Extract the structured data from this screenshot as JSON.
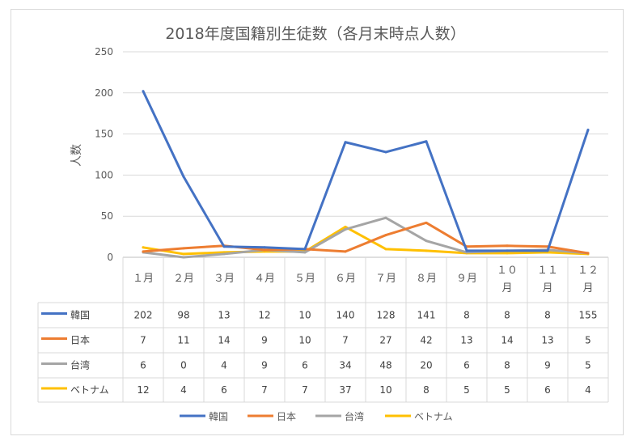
{
  "chart_data": {
    "type": "line",
    "title": "2018年度国籍別生徒数（各月末時点人数）",
    "ylabel": "人数",
    "xlabel": "",
    "ylim": [
      0,
      250
    ],
    "yticks": [
      0,
      50,
      100,
      150,
      200,
      250
    ],
    "grid": true,
    "legend_position": "bottom",
    "data_table": true,
    "categories": [
      [
        "１月"
      ],
      [
        "２月"
      ],
      [
        "３月"
      ],
      [
        "４月"
      ],
      [
        "５月"
      ],
      [
        "６月"
      ],
      [
        "７月"
      ],
      [
        "８月"
      ],
      [
        "９月"
      ],
      [
        "１０",
        "月"
      ],
      [
        "１１",
        "月"
      ],
      [
        "１２",
        "月"
      ]
    ],
    "series": [
      {
        "name": "韓国",
        "color": "#4472C4",
        "values": [
          202,
          98,
          13,
          12,
          10,
          140,
          128,
          141,
          8,
          8,
          8,
          155
        ]
      },
      {
        "name": "日本",
        "color": "#ED7D31",
        "values": [
          7,
          11,
          14,
          9,
          10,
          7,
          27,
          42,
          13,
          14,
          13,
          5
        ]
      },
      {
        "name": "台湾",
        "color": "#A5A5A5",
        "values": [
          6,
          0,
          4,
          9,
          6,
          34,
          48,
          20,
          6,
          8,
          9,
          5
        ]
      },
      {
        "name": "ベトナム",
        "color": "#FFC000",
        "values": [
          12,
          4,
          6,
          7,
          7,
          37,
          10,
          8,
          5,
          5,
          6,
          4
        ]
      }
    ]
  }
}
